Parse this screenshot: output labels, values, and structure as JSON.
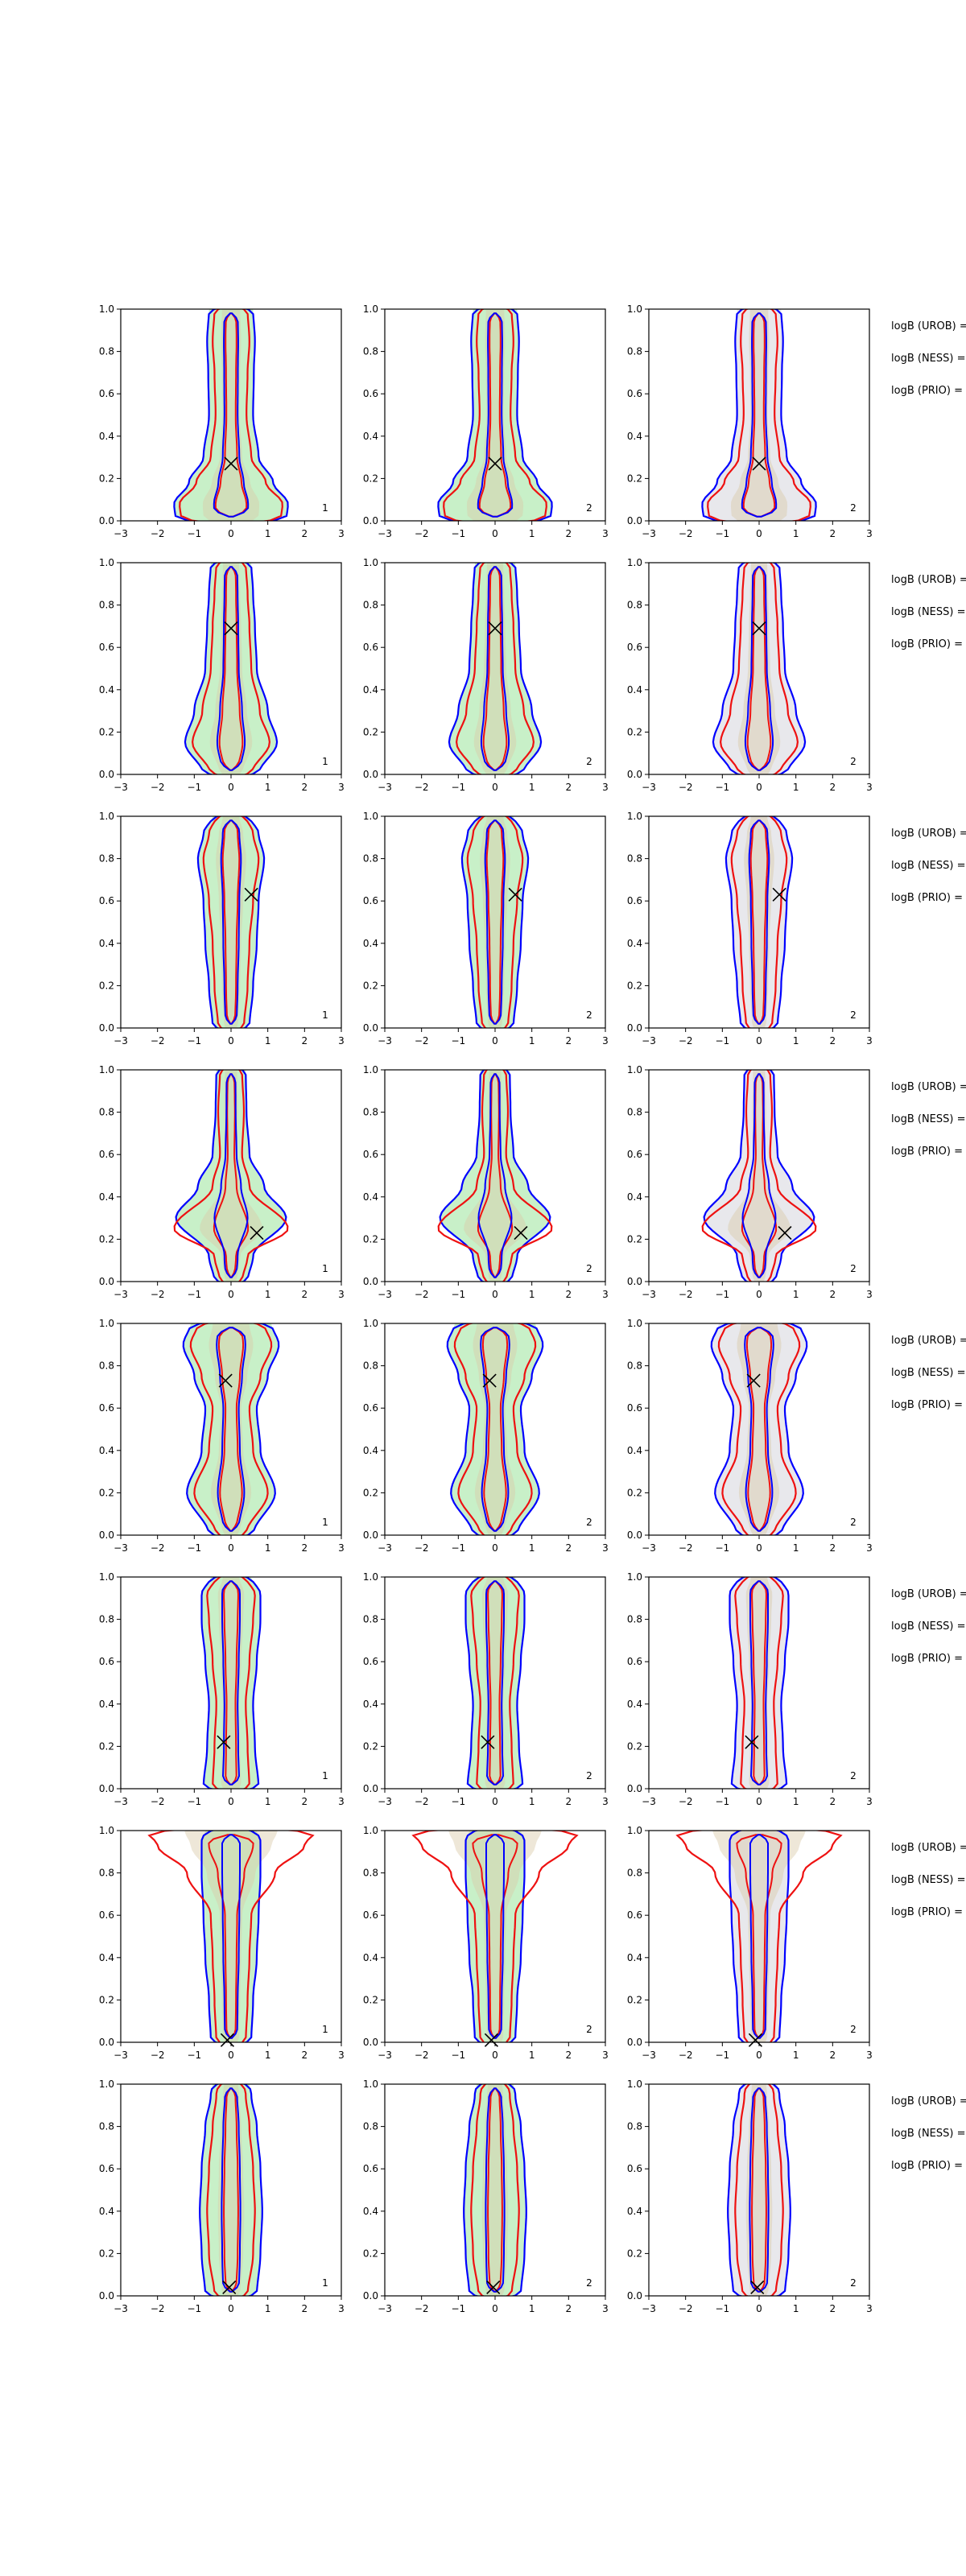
{
  "figure": {
    "title": "",
    "side_labels": [
      "logB (UROB) =",
      "logB (NESS) =",
      "logB (PRIO) ="
    ]
  },
  "chart_data": {
    "type": "area",
    "layout": {
      "rows": 8,
      "cols": 3
    },
    "xlim": [
      -3,
      3
    ],
    "ylim": [
      0,
      1
    ],
    "xticks": [
      -3,
      -2,
      -1,
      0,
      1,
      2,
      3
    ],
    "yticks": [
      0.0,
      0.2,
      0.4,
      0.6,
      0.8,
      1.0
    ],
    "xticklabels": [
      "−3",
      "−2",
      "−1",
      "0",
      "1",
      "2",
      "3"
    ],
    "yticklabels": [
      "0.0",
      "0.2",
      "0.4",
      "0.6",
      "0.8",
      "1.0"
    ],
    "grid": false,
    "colors": {
      "outer_contour": "#0000ff",
      "inner_contour": "#ee1111",
      "fill_green": "#c8f0c8",
      "fill_gray": "#e8e8ec",
      "band_tan": "#d9caa8"
    },
    "panel_tags": [
      "1",
      "2",
      "2"
    ],
    "rows": [
      {
        "marker": [
          0.0,
          0.27
        ],
        "blue": [
          [
            0.0,
            1.5
          ],
          [
            0.08,
            1.55
          ],
          [
            0.18,
            1.15
          ],
          [
            0.3,
            0.75
          ],
          [
            0.5,
            0.6
          ],
          [
            0.7,
            0.62
          ],
          [
            0.85,
            0.65
          ],
          [
            1.0,
            0.6
          ]
        ],
        "red": [
          [
            0.0,
            1.35
          ],
          [
            0.08,
            1.4
          ],
          [
            0.18,
            0.95
          ],
          [
            0.3,
            0.55
          ],
          [
            0.5,
            0.42
          ],
          [
            0.7,
            0.45
          ],
          [
            0.85,
            0.5
          ],
          [
            1.0,
            0.45
          ]
        ]
      },
      {
        "marker": [
          0.0,
          0.69
        ],
        "blue": [
          [
            0.0,
            0.75
          ],
          [
            0.15,
            1.25
          ],
          [
            0.3,
            1.0
          ],
          [
            0.5,
            0.7
          ],
          [
            0.7,
            0.65
          ],
          [
            0.85,
            0.6
          ],
          [
            1.0,
            0.55
          ]
        ],
        "red": [
          [
            0.0,
            0.55
          ],
          [
            0.15,
            1.05
          ],
          [
            0.3,
            0.78
          ],
          [
            0.5,
            0.55
          ],
          [
            0.7,
            0.5
          ],
          [
            0.85,
            0.45
          ],
          [
            1.0,
            0.4
          ]
        ]
      },
      {
        "marker": [
          0.55,
          0.63
        ],
        "blue": [
          [
            0.0,
            0.5
          ],
          [
            0.2,
            0.6
          ],
          [
            0.4,
            0.7
          ],
          [
            0.6,
            0.75
          ],
          [
            0.8,
            0.9
          ],
          [
            0.92,
            0.75
          ],
          [
            1.0,
            0.5
          ]
        ],
        "red": [
          [
            0.0,
            0.35
          ],
          [
            0.2,
            0.45
          ],
          [
            0.4,
            0.5
          ],
          [
            0.6,
            0.6
          ],
          [
            0.8,
            0.75
          ],
          [
            0.92,
            0.6
          ],
          [
            1.0,
            0.4
          ]
        ]
      },
      {
        "marker": [
          0.7,
          0.23
        ],
        "blue": [
          [
            0.0,
            0.45
          ],
          [
            0.12,
            0.6
          ],
          [
            0.3,
            1.5
          ],
          [
            0.45,
            0.9
          ],
          [
            0.6,
            0.5
          ],
          [
            0.8,
            0.42
          ],
          [
            1.0,
            0.4
          ]
        ],
        "red": [
          [
            0.0,
            0.3
          ],
          [
            0.12,
            0.45
          ],
          [
            0.25,
            1.55
          ],
          [
            0.45,
            0.5
          ],
          [
            0.6,
            0.3
          ],
          [
            0.8,
            0.35
          ],
          [
            1.0,
            0.3
          ]
        ]
      },
      {
        "marker": [
          -0.15,
          0.73
        ],
        "blue": [
          [
            0.0,
            0.6
          ],
          [
            0.2,
            1.2
          ],
          [
            0.4,
            0.8
          ],
          [
            0.6,
            0.7
          ],
          [
            0.75,
            1.0
          ],
          [
            0.9,
            1.3
          ],
          [
            1.0,
            1.1
          ]
        ],
        "red": [
          [
            0.0,
            0.4
          ],
          [
            0.2,
            1.0
          ],
          [
            0.4,
            0.6
          ],
          [
            0.6,
            0.5
          ],
          [
            0.75,
            0.8
          ],
          [
            0.9,
            1.1
          ],
          [
            1.0,
            0.9
          ]
        ]
      },
      {
        "marker": [
          -0.2,
          0.22
        ],
        "blue": [
          [
            0.0,
            0.75
          ],
          [
            0.2,
            0.65
          ],
          [
            0.4,
            0.6
          ],
          [
            0.6,
            0.7
          ],
          [
            0.8,
            0.8
          ],
          [
            0.92,
            0.8
          ],
          [
            1.0,
            0.55
          ]
        ],
        "red": [
          [
            0.0,
            0.5
          ],
          [
            0.2,
            0.45
          ],
          [
            0.4,
            0.4
          ],
          [
            0.6,
            0.5
          ],
          [
            0.8,
            0.6
          ],
          [
            0.92,
            0.65
          ],
          [
            1.0,
            0.4
          ]
        ]
      },
      {
        "marker": [
          -0.1,
          0.01
        ],
        "blue": [
          [
            0.0,
            0.55
          ],
          [
            0.2,
            0.6
          ],
          [
            0.4,
            0.7
          ],
          [
            0.6,
            0.75
          ],
          [
            0.8,
            0.8
          ],
          [
            0.95,
            0.8
          ],
          [
            1.0,
            0.7
          ]
        ],
        "red": [
          [
            0.0,
            0.4
          ],
          [
            0.2,
            0.45
          ],
          [
            0.4,
            0.5
          ],
          [
            0.6,
            0.55
          ],
          [
            0.8,
            1.2
          ],
          [
            0.93,
            2.0
          ],
          [
            1.0,
            2.3
          ]
        ]
      },
      {
        "marker": [
          -0.05,
          0.04
        ],
        "blue": [
          [
            0.0,
            0.7
          ],
          [
            0.2,
            0.8
          ],
          [
            0.4,
            0.85
          ],
          [
            0.6,
            0.8
          ],
          [
            0.8,
            0.7
          ],
          [
            0.95,
            0.55
          ],
          [
            1.0,
            0.5
          ]
        ],
        "red": [
          [
            0.0,
            0.45
          ],
          [
            0.2,
            0.6
          ],
          [
            0.4,
            0.65
          ],
          [
            0.6,
            0.6
          ],
          [
            0.8,
            0.5
          ],
          [
            0.95,
            0.4
          ],
          [
            1.0,
            0.35
          ]
        ]
      }
    ]
  }
}
